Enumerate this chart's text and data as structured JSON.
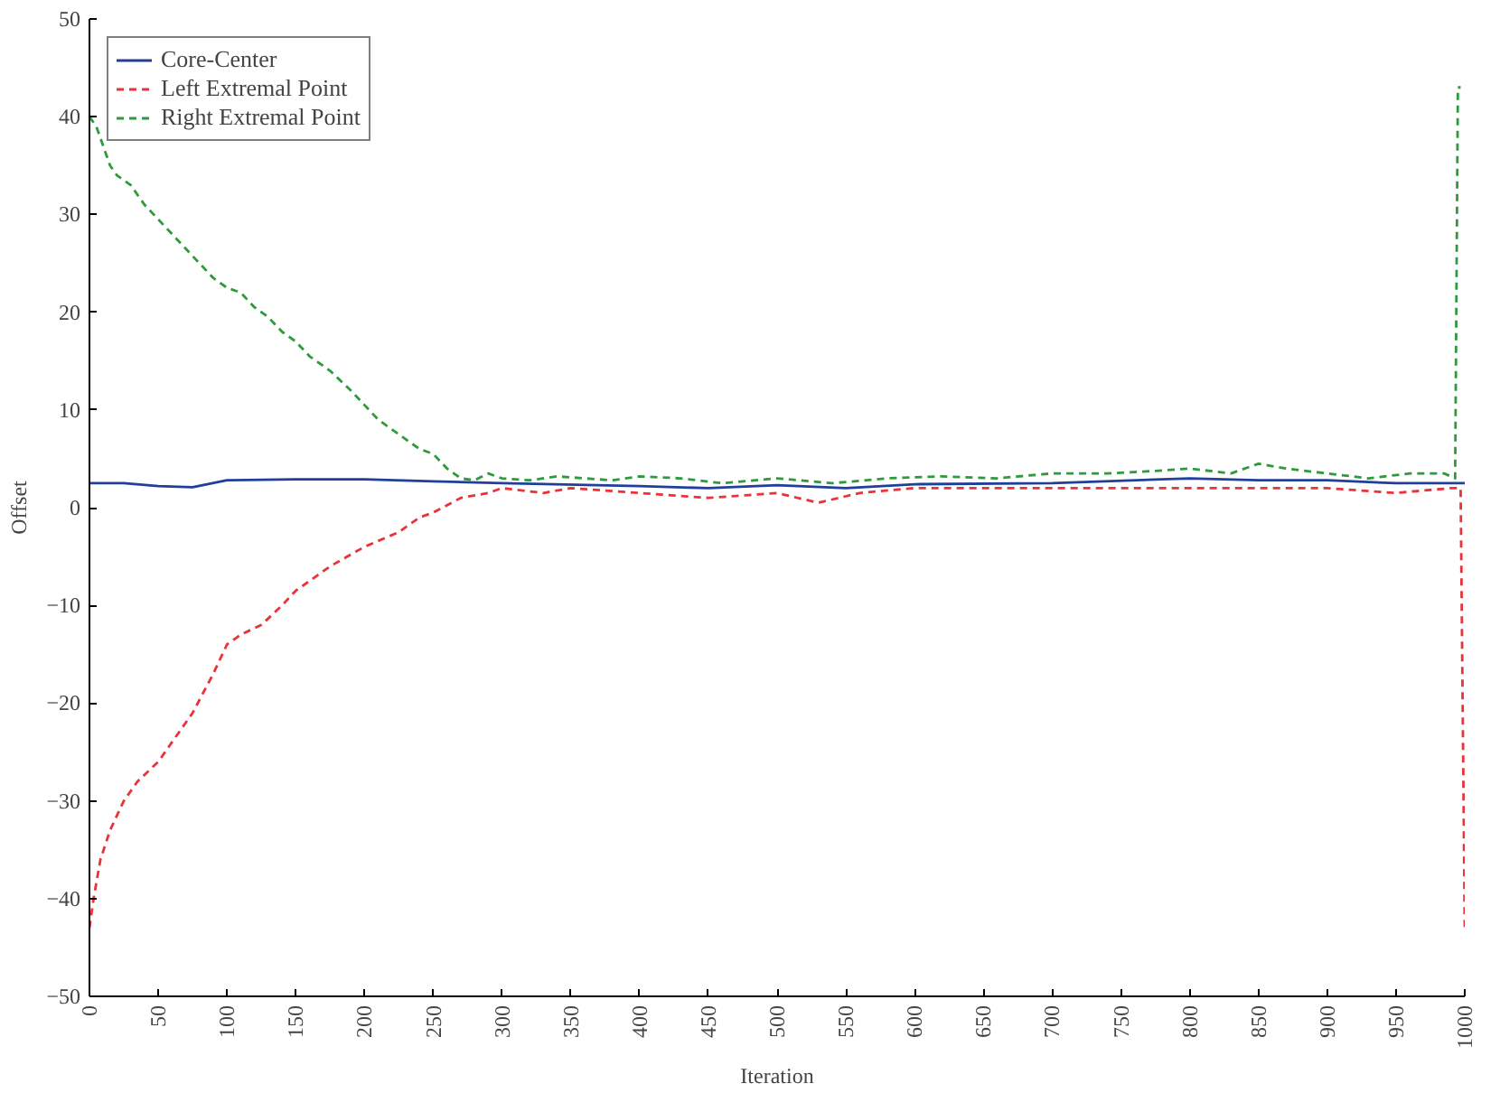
{
  "chart_data": {
    "type": "line",
    "xlabel": "Iteration",
    "ylabel": "Offset",
    "xlim": [
      0,
      1000
    ],
    "ylim": [
      -50,
      50
    ],
    "xticks": [
      0,
      50,
      100,
      150,
      200,
      250,
      300,
      350,
      400,
      450,
      500,
      550,
      600,
      650,
      700,
      750,
      800,
      850,
      900,
      950,
      1000
    ],
    "yticks": [
      -50,
      -40,
      -30,
      -20,
      -10,
      0,
      10,
      20,
      30,
      40,
      50
    ],
    "grid": false,
    "legend": "top left",
    "series": [
      {
        "name": "Core-Center",
        "color": "#203f9a",
        "line_style": "solid",
        "x": [
          0,
          25,
          50,
          75,
          100,
          150,
          200,
          250,
          300,
          400,
          450,
          500,
          550,
          600,
          700,
          800,
          850,
          900,
          950,
          1000
        ],
        "values": [
          2.5,
          2.5,
          2.2,
          2.1,
          2.8,
          2.9,
          2.9,
          2.7,
          2.5,
          2.2,
          2.0,
          2.3,
          2.0,
          2.4,
          2.5,
          3.0,
          2.8,
          2.8,
          2.5,
          2.5
        ]
      },
      {
        "name": "Left Extremal Point",
        "color": "#e8333a",
        "line_style": "dashed",
        "x": [
          0,
          3,
          8,
          15,
          25,
          35,
          50,
          60,
          75,
          90,
          100,
          110,
          125,
          140,
          150,
          175,
          200,
          225,
          240,
          250,
          270,
          290,
          300,
          330,
          350,
          400,
          450,
          500,
          530,
          560,
          600,
          650,
          700,
          750,
          800,
          850,
          900,
          950,
          990,
          997,
          1000
        ],
        "values": [
          -43,
          -40,
          -36,
          -33,
          -30,
          -28,
          -26,
          -24,
          -21,
          -17,
          -14,
          -13,
          -12,
          -10,
          -8.5,
          -6,
          -4,
          -2.5,
          -1,
          -0.5,
          1,
          1.5,
          2,
          1.5,
          2,
          1.5,
          1,
          1.5,
          0.5,
          1.5,
          2,
          2,
          2,
          2,
          2,
          2,
          2,
          1.5,
          2,
          2,
          -43
        ]
      },
      {
        "name": "Right Extremal Point",
        "color": "#2e9a3a",
        "line_style": "dashed",
        "x": [
          0,
          5,
          10,
          15,
          20,
          30,
          40,
          50,
          60,
          70,
          80,
          90,
          100,
          110,
          120,
          130,
          140,
          150,
          160,
          175,
          190,
          200,
          210,
          225,
          240,
          250,
          260,
          270,
          280,
          290,
          300,
          320,
          340,
          360,
          380,
          400,
          430,
          460,
          500,
          540,
          580,
          620,
          660,
          700,
          740,
          780,
          800,
          830,
          850,
          870,
          900,
          930,
          960,
          985,
          993,
          995,
          997
        ],
        "values": [
          40,
          39,
          37,
          35,
          34,
          33,
          31,
          29.5,
          28,
          26.5,
          25,
          23.5,
          22.5,
          22,
          20.5,
          19.5,
          18,
          17,
          15.5,
          14,
          12,
          10.5,
          9,
          7.5,
          6,
          5.5,
          4,
          3,
          2.8,
          3.5,
          3,
          2.8,
          3.2,
          3,
          2.8,
          3.2,
          3,
          2.5,
          3,
          2.5,
          3,
          3.2,
          3,
          3.5,
          3.5,
          3.8,
          4,
          3.5,
          4.5,
          4,
          3.5,
          3,
          3.5,
          3.5,
          3,
          43,
          43
        ]
      }
    ]
  }
}
